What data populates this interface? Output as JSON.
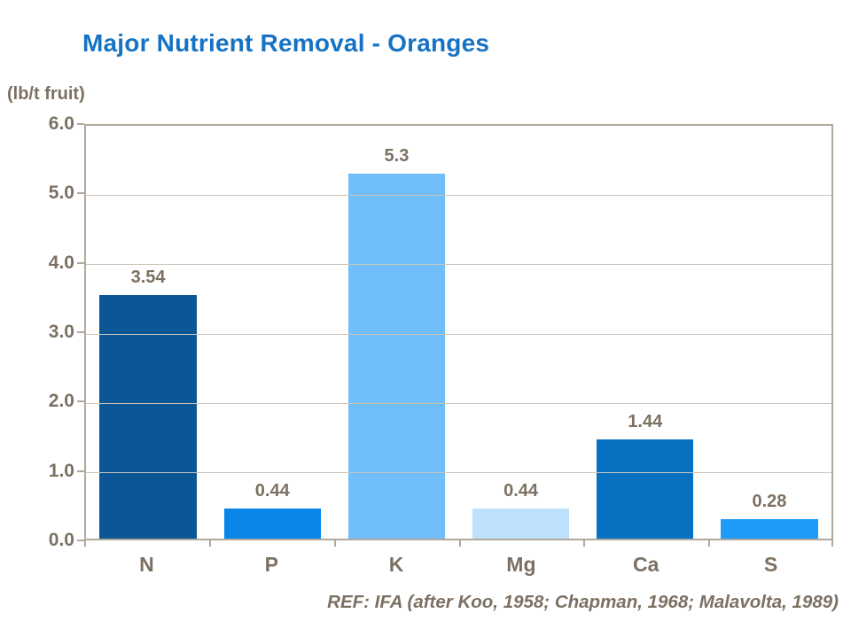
{
  "title": "Major Nutrient Removal - Oranges",
  "unit_label": "(lb/t fruit)",
  "footer_ref": "REF: IFA (after Koo, 1958; Chapman, 1968; Malavolta, 1989)",
  "colors": {
    "title_text": "#1673C4",
    "axis_text": "#7C7062",
    "gridline": "#CCC4BA",
    "frame_border": "#B2A99D",
    "background": "#FFFFFF"
  },
  "chart_data": {
    "type": "bar",
    "title": "Major Nutrient Removal - Oranges",
    "xlabel": "",
    "ylabel": "(lb/t fruit)",
    "categories": [
      "N",
      "P",
      "K",
      "Mg",
      "Ca",
      "S"
    ],
    "values": [
      3.54,
      0.44,
      5.3,
      0.44,
      1.44,
      0.28
    ],
    "value_labels": [
      "3.54",
      "0.44",
      "5.3",
      "0.44",
      "1.44",
      "0.28"
    ],
    "bar_colors": [
      "#0B5796",
      "#0A86E8",
      "#6FBDF9",
      "#BEE1FB",
      "#0671C1",
      "#1E9BF7"
    ],
    "ylim": [
      0,
      6
    ],
    "ytick_step": 1.0,
    "ytick_labels": [
      "0.0",
      "1.0",
      "2.0",
      "3.0",
      "4.0",
      "5.0",
      "6.0"
    ],
    "grid": true,
    "legend_position": "none",
    "annotation": "REF: IFA (after Koo, 1958; Chapman, 1968; Malavolta, 1989)"
  }
}
